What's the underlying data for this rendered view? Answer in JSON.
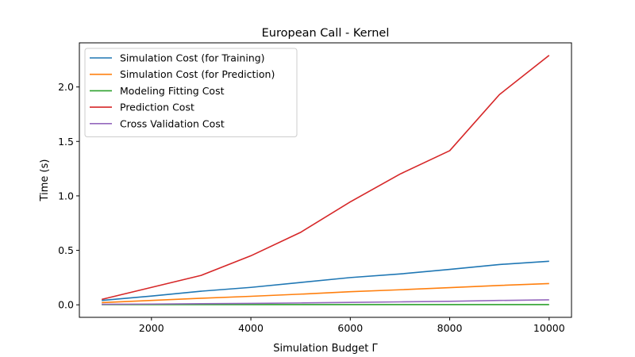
{
  "chart_data": {
    "type": "line",
    "title": "European Call - Kernel",
    "xlabel": "Simulation Budget Γ",
    "ylabel": "Time (s)",
    "xlim": [
      550,
      10450
    ],
    "ylim": [
      -0.115,
      2.405
    ],
    "xticks": [
      2000,
      4000,
      6000,
      8000,
      10000
    ],
    "xtick_labels": [
      "2000",
      "4000",
      "6000",
      "8000",
      "10000"
    ],
    "yticks": [
      0.0,
      0.5,
      1.0,
      1.5,
      2.0
    ],
    "ytick_labels": [
      "0.0",
      "0.5",
      "1.0",
      "1.5",
      "2.0"
    ],
    "grid": false,
    "legend_position": "top-left",
    "x": [
      1000,
      2000,
      3000,
      4000,
      5000,
      6000,
      7000,
      8000,
      9000,
      10000
    ],
    "series": [
      {
        "name": "Simulation Cost (for Training)",
        "color": "#1f77b4",
        "values": [
          0.04,
          0.08,
          0.125,
          0.16,
          0.205,
          0.25,
          0.283,
          0.325,
          0.37,
          0.4
        ]
      },
      {
        "name": "Simulation Cost (for Prediction)",
        "color": "#ff7f0e",
        "values": [
          0.02,
          0.04,
          0.06,
          0.078,
          0.098,
          0.12,
          0.138,
          0.158,
          0.178,
          0.195
        ]
      },
      {
        "name": "Modeling Fitting Cost",
        "color": "#2ca02c",
        "values": [
          0.002,
          0.002,
          0.002,
          0.002,
          0.002,
          0.002,
          0.002,
          0.002,
          0.002,
          0.002
        ]
      },
      {
        "name": "Prediction Cost",
        "color": "#d62728",
        "values": [
          0.05,
          0.16,
          0.27,
          0.45,
          0.665,
          0.945,
          1.2,
          1.415,
          1.93,
          2.29
        ]
      },
      {
        "name": "Cross Validation Cost",
        "color": "#9467bd",
        "values": [
          0.005,
          0.007,
          0.01,
          0.013,
          0.017,
          0.022,
          0.027,
          0.032,
          0.04,
          0.046
        ]
      }
    ]
  }
}
